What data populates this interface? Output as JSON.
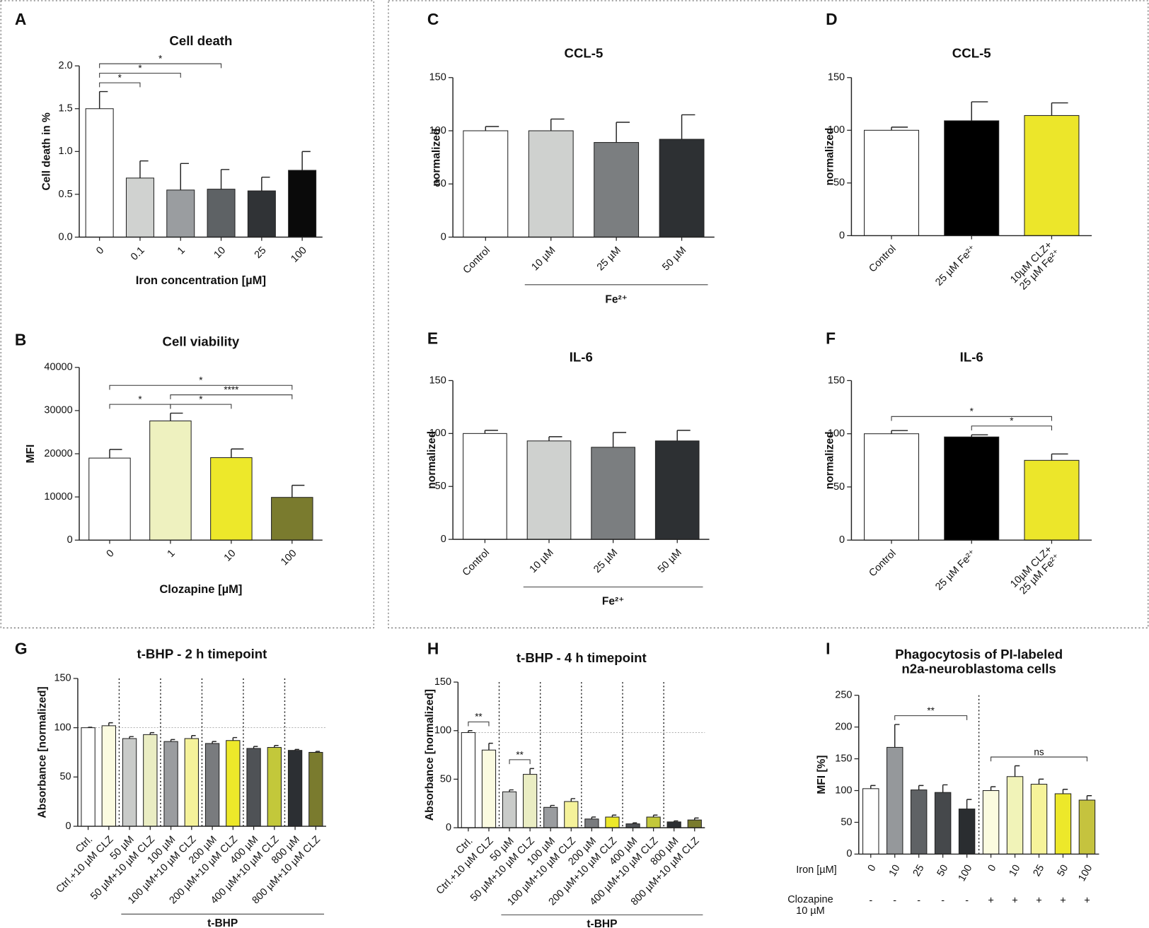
{
  "chart_data": [
    {
      "type": "bar",
      "panel": "A",
      "title": "Cell death",
      "x_label": "Iron  concentration [µM]",
      "y_label": "Cell death in %",
      "categories": [
        "0",
        "0.1",
        "1",
        "10",
        "25",
        "100"
      ],
      "values": [
        1.5,
        0.69,
        0.55,
        0.56,
        0.54,
        0.78
      ],
      "errors": [
        0.2,
        0.2,
        0.31,
        0.23,
        0.16,
        0.22
      ],
      "colors": [
        "#ffffff",
        "#d0d2d0",
        "#9a9da0",
        "#5e6265",
        "#303336",
        "#0a0a0a"
      ],
      "ylim": [
        0,
        2
      ],
      "yticks": [
        {
          "value": 0,
          "label": "0.0"
        },
        {
          "value": 0.5,
          "label": "0.5"
        },
        {
          "value": 1,
          "label": "1.0"
        },
        {
          "value": 1.5,
          "label": "1.5"
        },
        {
          "value": 2,
          "label": "2.0"
        }
      ],
      "annotations": [
        {
          "text": "*",
          "from": 0,
          "to": 1
        },
        {
          "text": "*",
          "from": 0,
          "to": 2
        },
        {
          "text": "*",
          "from": 0,
          "to": 3
        }
      ]
    },
    {
      "type": "bar",
      "panel": "B",
      "title": "Cell viability",
      "x_label": "Clozapine [µM]",
      "y_label": "MFI",
      "categories": [
        "0",
        "1",
        "10",
        "100"
      ],
      "values": [
        19000,
        27600,
        19100,
        9900
      ],
      "errors": [
        2000,
        1800,
        2000,
        2800
      ],
      "colors": [
        "#ffffff",
        "#eef1bf",
        "#ede82a",
        "#7a7b2e"
      ],
      "ylim": [
        0,
        40000
      ],
      "yticks": [
        0,
        10000,
        20000,
        30000,
        40000
      ],
      "annotations": [
        {
          "text": "*",
          "from": 0,
          "to": 1
        },
        {
          "text": "*",
          "from": 1,
          "to": 2
        },
        {
          "text": "****",
          "from": 1,
          "to": 3
        },
        {
          "text": "*",
          "from": 0,
          "to": 3
        }
      ]
    },
    {
      "type": "bar",
      "panel": "C",
      "title": "CCL-5",
      "y_label": "normalized",
      "categories": [
        "Control",
        "10 µM",
        "25 µM",
        "50 µM"
      ],
      "values": [
        100,
        100,
        89,
        92
      ],
      "errors": [
        4,
        11,
        19,
        23
      ],
      "colors": [
        "#ffffff",
        "#cfd1cf",
        "#7b7e80",
        "#2d3033"
      ],
      "ylim": [
        0,
        150
      ],
      "yticks": [
        0,
        50,
        100,
        150
      ],
      "group_label": {
        "text": "Fe²⁺",
        "from": 1,
        "to": 3
      }
    },
    {
      "type": "bar",
      "panel": "D",
      "title": "CCL-5",
      "y_label": "normalized",
      "categories": [
        "Control",
        "25 µM Fe²⁺",
        "10µM CLZ+\n25 µM Fe²⁺"
      ],
      "values": [
        100,
        109,
        114
      ],
      "errors": [
        3,
        18,
        12
      ],
      "colors": [
        "#ffffff",
        "#000000",
        "#ece62a"
      ],
      "ylim": [
        0,
        150
      ],
      "yticks": [
        0,
        50,
        100,
        150
      ]
    },
    {
      "type": "bar",
      "panel": "E",
      "title": "IL-6",
      "y_label": "normalized",
      "categories": [
        "Control",
        "10 µM",
        "25 µM",
        "50 µM"
      ],
      "values": [
        100,
        93,
        87,
        93
      ],
      "errors": [
        3,
        4,
        14,
        10
      ],
      "colors": [
        "#ffffff",
        "#cfd1cf",
        "#7b7e80",
        "#2d3033"
      ],
      "ylim": [
        0,
        150
      ],
      "yticks": [
        0,
        50,
        100,
        150
      ],
      "group_label": {
        "text": "Fe²⁺",
        "from": 1,
        "to": 3
      }
    },
    {
      "type": "bar",
      "panel": "F",
      "title": "IL-6",
      "y_label": "normalized",
      "categories": [
        "Control",
        "25 µM Fe²⁺",
        "10µM CLZ+\n25 µM Fe²⁺"
      ],
      "values": [
        100,
        97,
        75
      ],
      "errors": [
        3,
        2,
        6
      ],
      "colors": [
        "#ffffff",
        "#000000",
        "#ece62a"
      ],
      "ylim": [
        0,
        150
      ],
      "yticks": [
        0,
        50,
        100,
        150
      ],
      "annotations": [
        {
          "text": "*",
          "from": 1,
          "to": 2
        },
        {
          "text": "*",
          "from": 0,
          "to": 2
        }
      ]
    },
    {
      "type": "bar",
      "panel": "G",
      "title": "t-BHP - 2 h timepoint",
      "y_label": "Absorbance [normalized]",
      "categories": [
        "Ctrl.",
        "Ctrl.+10 µM CLZ",
        "50 µM",
        "50 µM+10 µM CLZ",
        "100 µM",
        "100 µM+10 µM CLZ",
        "200 µM",
        "200 µM+10 µM CLZ",
        "400 µM",
        "400 µM+10 µM CLZ",
        "800 µM",
        "800 µM+10 µM CLZ"
      ],
      "values": [
        100,
        102,
        89,
        93,
        86,
        89,
        84,
        87,
        79,
        80,
        77,
        75
      ],
      "errors": [
        0.5,
        3,
        2,
        2,
        2,
        3,
        2,
        3,
        2,
        2,
        1,
        1
      ],
      "colors": [
        "#ffffff",
        "#fbfbe0",
        "#c9cbc9",
        "#eaedc3",
        "#9a9c9f",
        "#f5f29a",
        "#797b7e",
        "#ede82a",
        "#4f5256",
        "#c3c83a",
        "#2c2f33",
        "#7a7b2e"
      ],
      "ylim": [
        0,
        150
      ],
      "yticks": [
        0,
        50,
        100,
        150
      ],
      "reference_line": 100,
      "group_label": {
        "text": "t-BHP",
        "from": 2,
        "to": 11
      }
    },
    {
      "type": "bar",
      "panel": "H",
      "title": "t-BHP - 4 h timepoint",
      "y_label": "Absorbance [normalized]",
      "categories": [
        "Ctrl.",
        "Ctrl.+10 µM CLZ",
        "50 µM",
        "50 µM+10 µM CLZ",
        "100 µM",
        "100 µM+10 µM CLZ",
        "200 µM",
        "200 µM+10 µM CLZ",
        "400 µM",
        "400 µM+10 µM CLZ",
        "800 µM",
        "800 µM+10 µM CLZ"
      ],
      "values": [
        98,
        80,
        37,
        55,
        21,
        27,
        9,
        11,
        4,
        11,
        6,
        8
      ],
      "errors": [
        2,
        7,
        2,
        6,
        2,
        3,
        2,
        2,
        1,
        2,
        1,
        2
      ],
      "colors": [
        "#ffffff",
        "#fbfbe0",
        "#c9cbc9",
        "#eaedc3",
        "#9a9c9f",
        "#f5f29a",
        "#797b7e",
        "#ede82a",
        "#4f5256",
        "#c3c83a",
        "#2c2f33",
        "#7a7b2e"
      ],
      "ylim": [
        0,
        150
      ],
      "yticks": [
        0,
        50,
        100,
        150
      ],
      "reference_line": 98,
      "annotations": [
        {
          "text": "**",
          "from": 0,
          "to": 1
        },
        {
          "text": "**",
          "from": 2,
          "to": 3
        }
      ],
      "group_label": {
        "text": "t-BHP",
        "from": 2,
        "to": 11
      }
    },
    {
      "type": "bar",
      "panel": "I",
      "title": "Phagocytosis of PI-labeled\nn2a-neuroblastoma cells",
      "y_label": "MFI [%]",
      "categories": [
        "0",
        "10",
        "25",
        "50",
        "100",
        "0",
        "10",
        "25",
        "50",
        "100"
      ],
      "clozapine": [
        "-",
        "-",
        "-",
        "-",
        "-",
        "+",
        "+",
        "+",
        "+",
        "+"
      ],
      "row_labels": [
        "Iron [µM]",
        "Clozapine\n10 µM"
      ],
      "values": [
        103,
        168,
        101,
        97,
        71,
        100,
        122,
        110,
        95,
        85
      ],
      "errors": [
        5,
        36,
        7,
        12,
        15,
        6,
        17,
        8,
        7,
        7
      ],
      "colors": [
        "#ffffff",
        "#95989b",
        "#5f6265",
        "#45484b",
        "#2a2d30",
        "#fbfbdf",
        "#f1f3b8",
        "#f6f39a",
        "#ede82a",
        "#c5c33e"
      ],
      "ylim": [
        0,
        250
      ],
      "yticks": [
        0,
        50,
        100,
        150,
        200,
        250
      ],
      "annotations": [
        {
          "text": "**",
          "from": 1,
          "to": 4
        },
        {
          "text": "ns",
          "from": 5,
          "to": 9
        }
      ]
    }
  ]
}
